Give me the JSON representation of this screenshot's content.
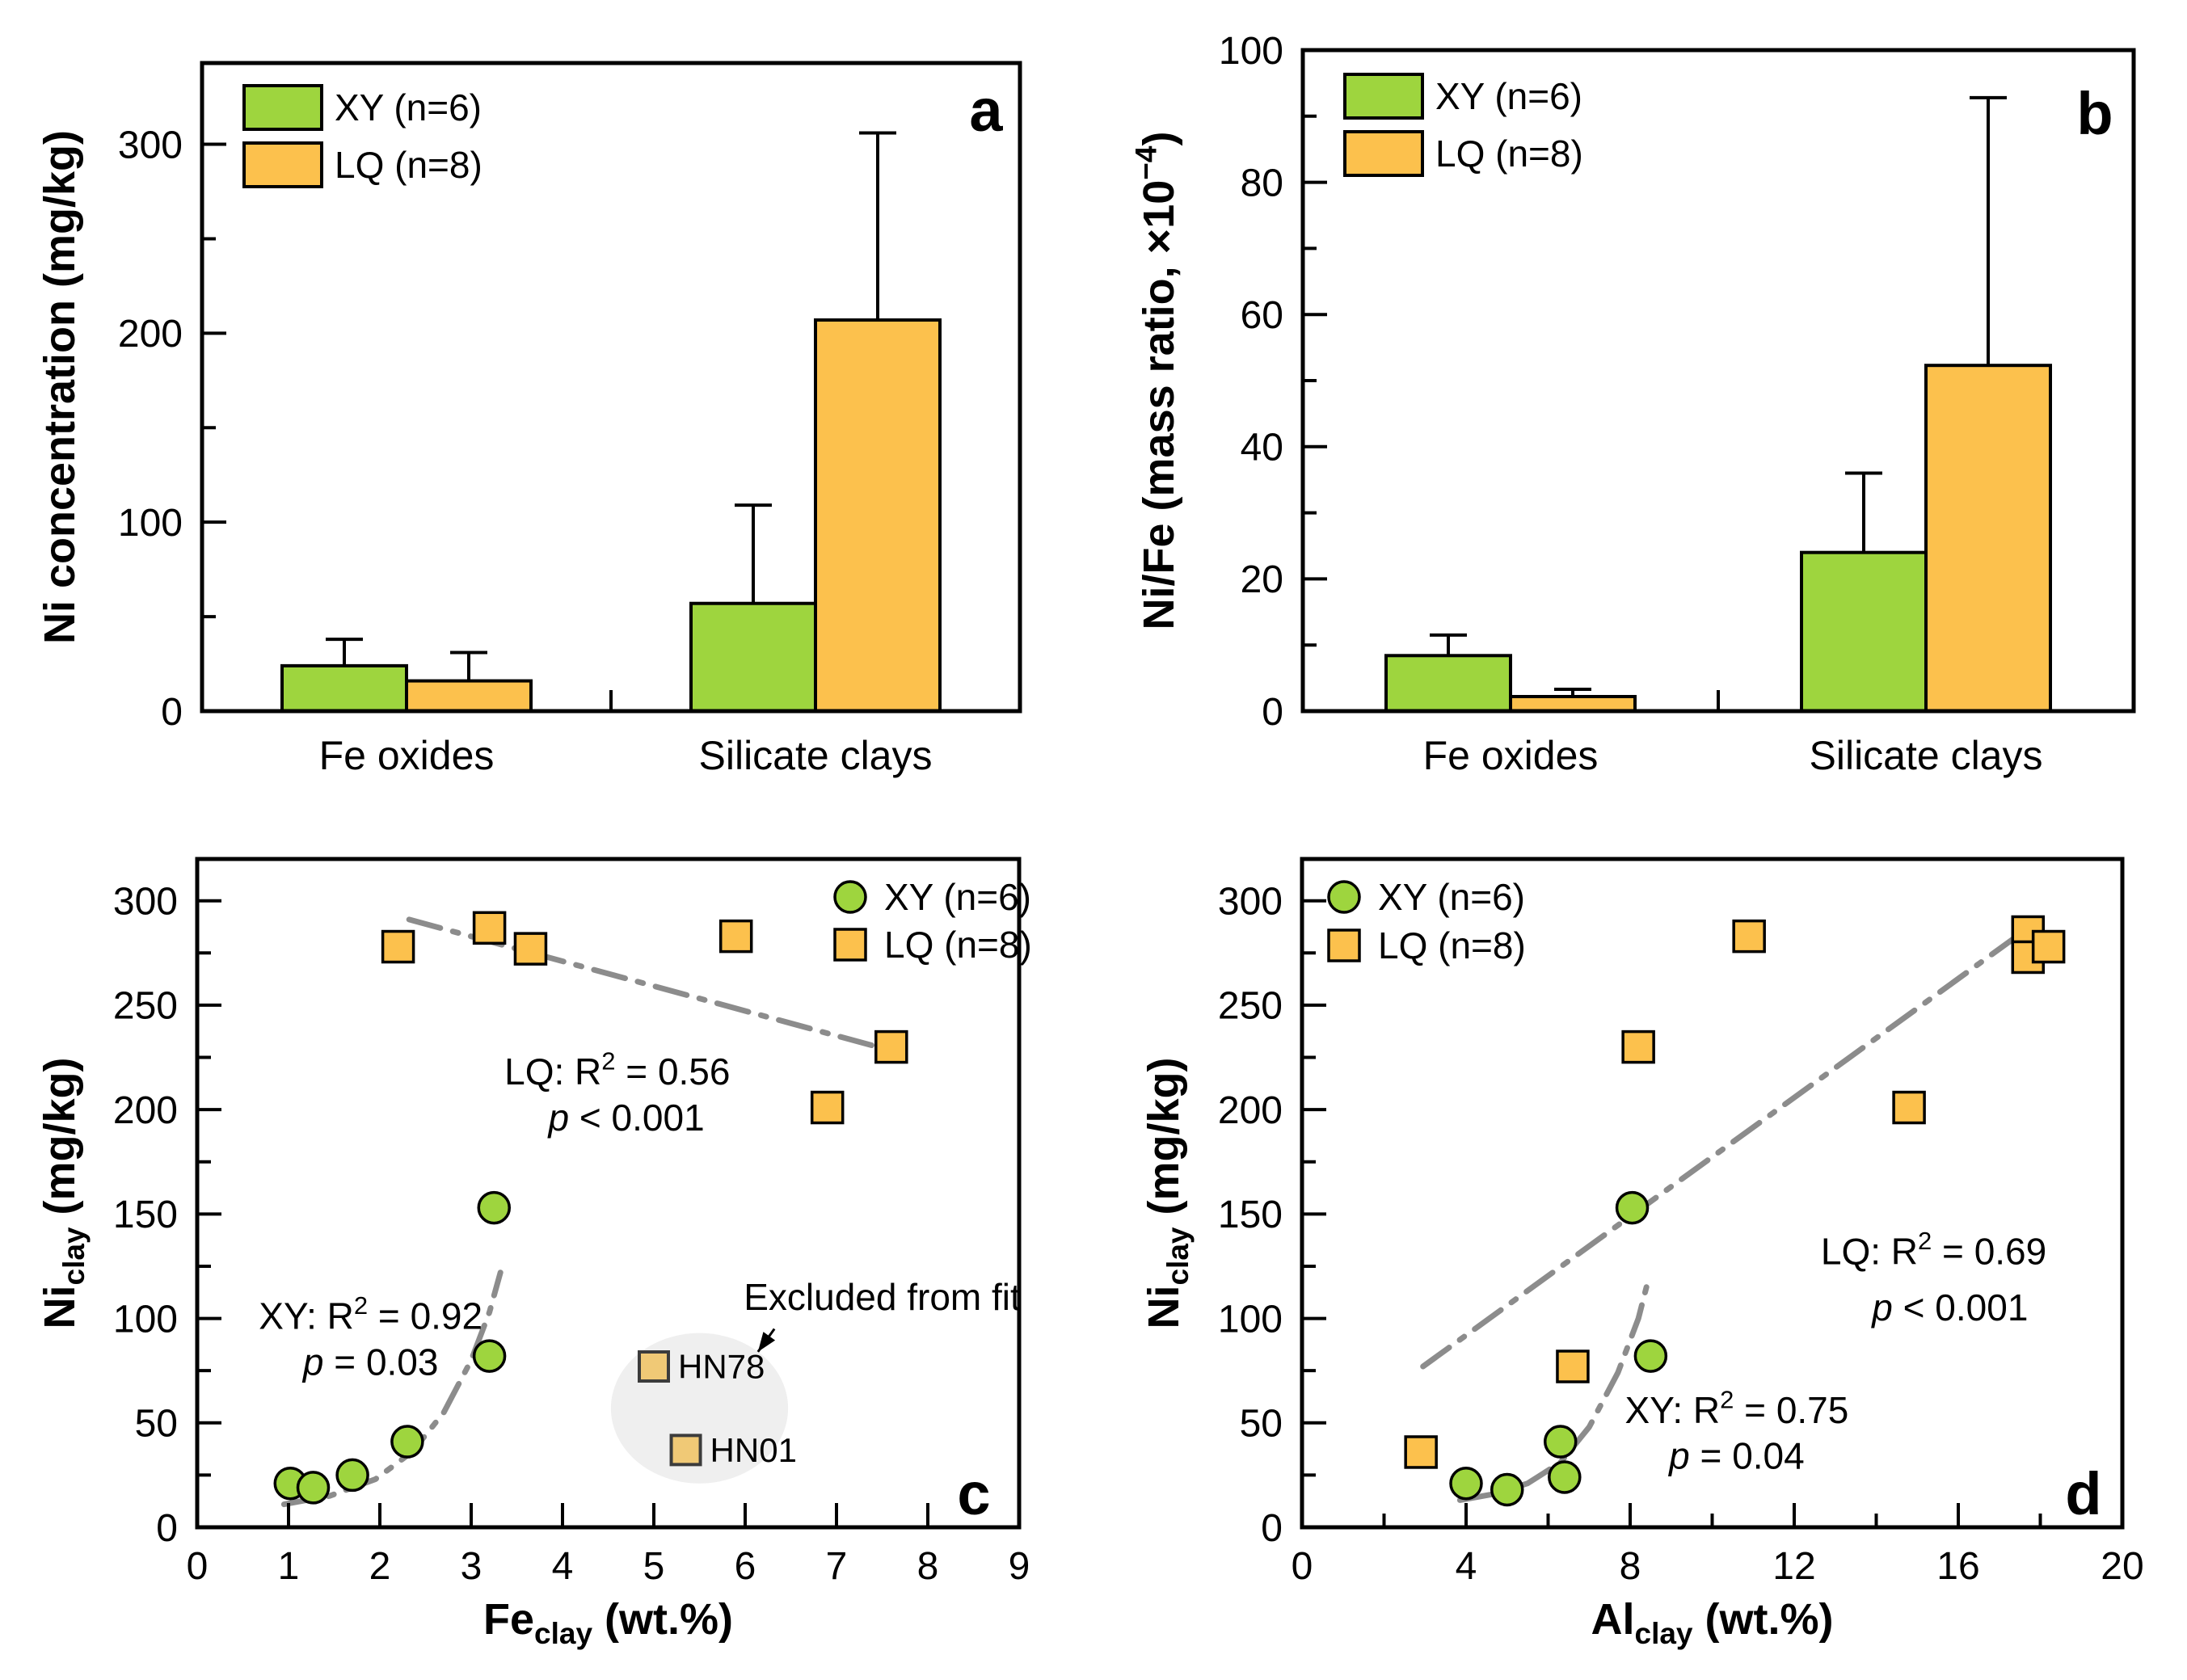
{
  "colors": {
    "xy_fill": "#9ED53E",
    "lq_fill": "#FCC14D",
    "excluded_fill": "#F0C976",
    "excluded_stroke": "#3C3C3C",
    "trend": "#8C8C8C",
    "ellipse_fill": "#EFEFEF",
    "axis": "#000000"
  },
  "legend": {
    "xy_label": "XY (n=6)",
    "lq_label": "LQ (n=8)"
  },
  "chart_data": [
    {
      "id": "a",
      "type": "bar",
      "panel_label": "a",
      "ylabel_parts": [
        {
          "t": "Ni concentration (mg/kg)"
        }
      ],
      "categories": [
        "Fe oxides",
        "Silicate clays"
      ],
      "series": [
        {
          "name": "XY (n=6)",
          "color_key": "xy_fill",
          "values": [
            24,
            57
          ],
          "errors_up": [
            14,
            52
          ]
        },
        {
          "name": "LQ (n=8)",
          "color_key": "lq_fill",
          "values": [
            16,
            207
          ],
          "errors_up": [
            15,
            99
          ]
        }
      ],
      "ylim": [
        0,
        343
      ],
      "yticks": [
        0,
        100,
        200,
        300
      ],
      "yminor": [
        50,
        150,
        250
      ],
      "legend_position": "top-left"
    },
    {
      "id": "b",
      "type": "bar",
      "panel_label": "b",
      "ylabel_parts": [
        {
          "t": "Ni/Fe (mass ratio, ×10"
        },
        {
          "t": "−4",
          "sup": true
        },
        {
          "t": ")"
        }
      ],
      "categories": [
        "Fe oxides",
        "Silicate clays"
      ],
      "series": [
        {
          "name": "XY (n=6)",
          "color_key": "xy_fill",
          "values": [
            8.4,
            24
          ],
          "errors_up": [
            3.1,
            12
          ]
        },
        {
          "name": "LQ (n=8)",
          "color_key": "lq_fill",
          "values": [
            2.2,
            52.3
          ],
          "errors_up": [
            1.1,
            40.5
          ]
        }
      ],
      "ylim": [
        0,
        100
      ],
      "yticks": [
        0,
        20,
        40,
        60,
        80,
        100
      ],
      "yminor": [
        10,
        30,
        50,
        70,
        90
      ],
      "legend_position": "top-left"
    },
    {
      "id": "c",
      "type": "scatter",
      "panel_label": "c",
      "xlabel_parts": [
        {
          "t": "Fe"
        },
        {
          "t": "clay",
          "sub": true
        },
        {
          "t": " (wt.%)"
        }
      ],
      "ylabel_parts": [
        {
          "t": "Ni"
        },
        {
          "t": "clay",
          "sub": true
        },
        {
          "t": " (mg/kg)"
        }
      ],
      "xlim": [
        0,
        9
      ],
      "ylim": [
        0,
        320
      ],
      "xticks": [
        0,
        1,
        2,
        3,
        4,
        5,
        6,
        7,
        8,
        9
      ],
      "xminor": [],
      "yticks": [
        0,
        50,
        100,
        150,
        200,
        250,
        300
      ],
      "yminor": [
        25,
        75,
        125,
        175,
        225,
        275
      ],
      "xy_points": [
        [
          1.02,
          21
        ],
        [
          1.27,
          19
        ],
        [
          1.7,
          25
        ],
        [
          2.3,
          41
        ],
        [
          3.2,
          82
        ],
        [
          3.25,
          153
        ]
      ],
      "lq_points": [
        [
          2.2,
          278
        ],
        [
          3.2,
          287
        ],
        [
          3.65,
          277
        ],
        [
          5.9,
          283
        ],
        [
          6.9,
          201
        ],
        [
          7.6,
          230
        ]
      ],
      "xy_trend": [
        [
          0.95,
          11
        ],
        [
          1.45,
          15
        ],
        [
          1.95,
          23
        ],
        [
          2.35,
          36
        ],
        [
          2.7,
          55
        ],
        [
          3.0,
          80
        ],
        [
          3.2,
          103
        ],
        [
          3.32,
          122
        ]
      ],
      "lq_trend": [
        [
          2.32,
          291
        ],
        [
          7.62,
          228
        ]
      ],
      "annotations": [
        {
          "x": 1.9,
          "y": 95,
          "parts": [
            {
              "t": "XY: R"
            },
            {
              "t": "2",
              "sup": true
            },
            {
              "t": " = 0.92"
            }
          ]
        },
        {
          "x": 1.9,
          "y": 73,
          "parts": [
            {
              "t": "p",
              "i": true
            },
            {
              "t": " = 0.03"
            }
          ]
        },
        {
          "x": 4.6,
          "y": 212,
          "parts": [
            {
              "t": "LQ: R"
            },
            {
              "t": "2",
              "sup": true
            },
            {
              "t": " = 0.56"
            }
          ]
        },
        {
          "x": 4.7,
          "y": 190,
          "parts": [
            {
              "t": "p",
              "i": true
            },
            {
              "t": " < 0.001"
            }
          ]
        }
      ],
      "excluded": {
        "ellipse": {
          "cx": 5.5,
          "cy": 57,
          "rx": 0.97,
          "ry": 36
        },
        "points": [
          {
            "x": 5.0,
            "y": 77,
            "label": "HN78"
          },
          {
            "x": 5.35,
            "y": 37,
            "label": "HN01"
          }
        ],
        "note": {
          "text": "Excluded from fit",
          "x": 7.5,
          "y": 104
        },
        "arrow": {
          "x1": 6.32,
          "y1": 95,
          "x2": 6.14,
          "y2": 84
        }
      },
      "legend_position": "top-right"
    },
    {
      "id": "d",
      "type": "scatter",
      "panel_label": "d",
      "xlabel_parts": [
        {
          "t": "Al"
        },
        {
          "t": "clay",
          "sub": true
        },
        {
          "t": " (wt.%)"
        }
      ],
      "ylabel_parts": [
        {
          "t": "Ni"
        },
        {
          "t": "clay",
          "sub": true
        },
        {
          "t": " (mg/kg)"
        }
      ],
      "xlim": [
        0,
        20
      ],
      "ylim": [
        0,
        320
      ],
      "xticks": [
        0,
        4,
        8,
        12,
        16,
        20
      ],
      "xminor": [
        2,
        6,
        10,
        14,
        18
      ],
      "yticks": [
        0,
        50,
        100,
        150,
        200,
        250,
        300
      ],
      "yminor": [
        25,
        75,
        125,
        175,
        225,
        275
      ],
      "xy_points": [
        [
          4.0,
          21
        ],
        [
          5.0,
          18
        ],
        [
          6.3,
          41
        ],
        [
          6.4,
          24
        ],
        [
          8.05,
          153
        ],
        [
          8.5,
          82
        ]
      ],
      "lq_points": [
        [
          2.9,
          36
        ],
        [
          6.6,
          77
        ],
        [
          8.2,
          230
        ],
        [
          10.9,
          283
        ],
        [
          14.8,
          201
        ],
        [
          17.7,
          285
        ],
        [
          17.7,
          273
        ],
        [
          18.2,
          278
        ]
      ],
      "xy_trend": [
        [
          3.85,
          13
        ],
        [
          4.7,
          16
        ],
        [
          5.5,
          21
        ],
        [
          6.3,
          31
        ],
        [
          7.0,
          48
        ],
        [
          7.7,
          74
        ],
        [
          8.2,
          100
        ],
        [
          8.45,
          119
        ]
      ],
      "lq_trend": [
        [
          2.95,
          77
        ],
        [
          17.85,
          289
        ]
      ],
      "annotations": [
        {
          "x": 15.4,
          "y": 126,
          "parts": [
            {
              "t": "LQ: R"
            },
            {
              "t": "2",
              "sup": true
            },
            {
              "t": " = 0.69"
            }
          ]
        },
        {
          "x": 15.8,
          "y": 99,
          "parts": [
            {
              "t": "p",
              "i": true
            },
            {
              "t": " < 0.001"
            }
          ]
        },
        {
          "x": 10.6,
          "y": 50,
          "parts": [
            {
              "t": "XY: R"
            },
            {
              "t": "2",
              "sup": true
            },
            {
              "t": " = 0.75"
            }
          ]
        },
        {
          "x": 10.6,
          "y": 28,
          "parts": [
            {
              "t": "p",
              "i": true
            },
            {
              "t": " = 0.04"
            }
          ]
        }
      ],
      "legend_position": "top-left"
    }
  ]
}
